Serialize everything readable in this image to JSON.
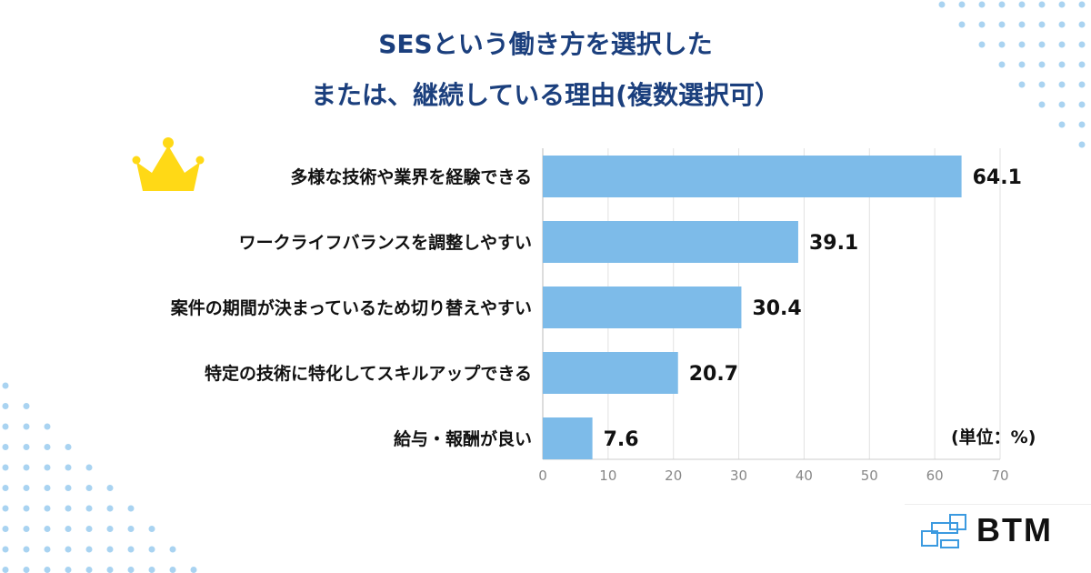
{
  "title_line1": "SESという働き方を選択した",
  "title_line2": "または、継続している理由(複数選択可）",
  "unit_label": "(単位：%)",
  "logo_text": "BTM",
  "colors": {
    "bar": "#7dbbe9",
    "title": "#1b3f7d",
    "dots": "#a9d3f1",
    "crown": "#ffd916"
  },
  "chart_data": {
    "type": "bar",
    "orientation": "horizontal",
    "title": "SESという働き方を選択した または、継続している理由(複数選択可）",
    "categories": [
      "多様な技術や業界を経験できる",
      "ワークライフバランスを調整しやすい",
      "案件の期間が決まっているため切り替えやすい",
      "特定の技術に特化してスキルアップできる",
      "給与・報酬が良い"
    ],
    "values": [
      64.1,
      39.1,
      30.4,
      20.7,
      7.6
    ],
    "value_labels": [
      "64.1",
      "39.1",
      "30.4",
      "20.7",
      "7.6"
    ],
    "xlim": [
      0,
      70
    ],
    "xticks": [
      0,
      10,
      20,
      30,
      40,
      50,
      60,
      70
    ],
    "xlabel": "(単位：%)",
    "grid": true,
    "highlight": "crown icon on top item"
  }
}
